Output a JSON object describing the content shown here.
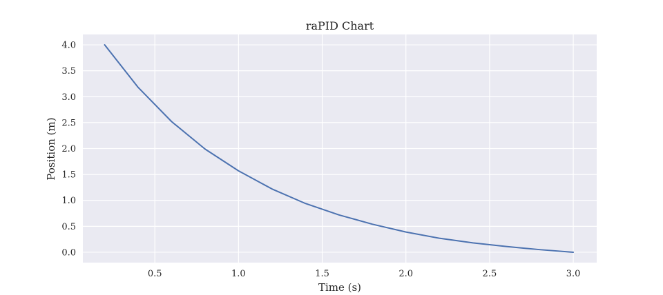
{
  "chart_data": {
    "type": "line",
    "title": "raPID Chart",
    "xlabel": "Time (s)",
    "ylabel": "Position (m)",
    "xlim": [
      0.07,
      3.14
    ],
    "ylim": [
      -0.2,
      4.2
    ],
    "xticks": [
      0.5,
      1.0,
      1.5,
      2.0,
      2.5,
      3.0
    ],
    "xtick_labels": [
      "0.5",
      "1.0",
      "1.5",
      "2.0",
      "2.5",
      "3.0"
    ],
    "yticks": [
      0.0,
      0.5,
      1.0,
      1.5,
      2.0,
      2.5,
      3.0,
      3.5,
      4.0
    ],
    "ytick_labels": [
      "0.0",
      "0.5",
      "1.0",
      "1.5",
      "2.0",
      "2.5",
      "3.0",
      "3.5",
      "4.0"
    ],
    "grid": true,
    "background": "#eaeaf2",
    "grid_color": "#ffffff",
    "series": [
      {
        "color": "#4c72b0",
        "x": [
          0.2,
          0.4,
          0.6,
          0.8,
          1.0,
          1.2,
          1.4,
          1.6,
          1.8,
          2.0,
          2.2,
          2.4,
          2.6,
          2.8,
          3.0
        ],
        "y": [
          4.0,
          3.18,
          2.52,
          1.99,
          1.57,
          1.22,
          0.94,
          0.72,
          0.54,
          0.39,
          0.27,
          0.18,
          0.11,
          0.05,
          0.0
        ]
      }
    ]
  }
}
